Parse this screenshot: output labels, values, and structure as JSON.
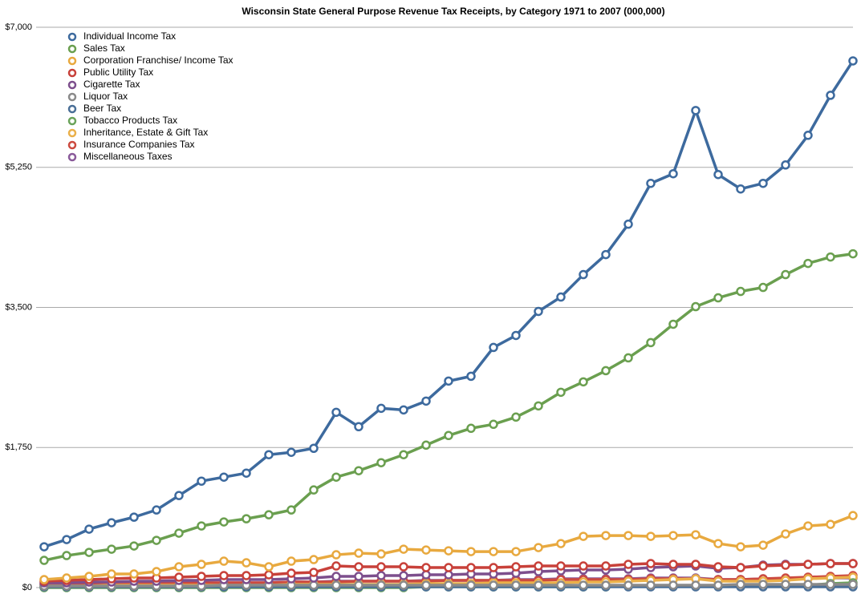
{
  "chart_data": {
    "type": "line",
    "title": "Wisconsin State General Purpose Revenue Tax Receipts, by Category 1971 to 2007 (000,000)",
    "categories": [
      null,
      null,
      null,
      null,
      null,
      null,
      null,
      null,
      null,
      null,
      null,
      null,
      null,
      null,
      null,
      null,
      null,
      null,
      null,
      null,
      null,
      null,
      null,
      null,
      null,
      null,
      null,
      null,
      null,
      null,
      null,
      null,
      null,
      null,
      null,
      null,
      null
    ],
    "ylim": [
      0,
      7000
    ],
    "yticks": [
      {
        "value": 0,
        "label": "$0"
      },
      {
        "value": 1750,
        "label": "$1,750"
      },
      {
        "value": 3500,
        "label": "$3,500"
      },
      {
        "value": 5250,
        "label": "$5,250"
      },
      {
        "value": 7000,
        "label": "$7,000"
      }
    ],
    "grid": true,
    "legend": "top-left",
    "series": [
      {
        "name": "Individual Income Tax",
        "color": "#3d6a9e",
        "values": [
          510,
          600,
          730,
          810,
          880,
          970,
          1150,
          1330,
          1380,
          1430,
          1660,
          1690,
          1740,
          2190,
          2010,
          2240,
          2220,
          2330,
          2580,
          2640,
          3000,
          3150,
          3450,
          3630,
          3910,
          4160,
          4540,
          5050,
          5170,
          5960,
          5160,
          4980,
          5050,
          5280,
          5650,
          6150,
          6580
        ]
      },
      {
        "name": "Sales Tax",
        "color": "#6a9f4f",
        "values": [
          340,
          400,
          440,
          480,
          520,
          590,
          680,
          770,
          820,
          860,
          910,
          970,
          1220,
          1380,
          1460,
          1560,
          1660,
          1780,
          1900,
          1990,
          2040,
          2130,
          2270,
          2440,
          2570,
          2710,
          2870,
          3060,
          3290,
          3510,
          3620,
          3700,
          3750,
          3910,
          4050,
          4130,
          4170
        ]
      },
      {
        "name": "Corporation Franchise/ Income Tax",
        "color": "#e8a93f",
        "values": [
          100,
          120,
          140,
          170,
          170,
          200,
          260,
          290,
          330,
          310,
          260,
          330,
          350,
          410,
          430,
          420,
          480,
          470,
          460,
          450,
          450,
          450,
          500,
          550,
          640,
          650,
          650,
          640,
          650,
          660,
          550,
          510,
          530,
          670,
          770,
          790,
          900
        ]
      },
      {
        "name": "Public Utility Tax",
        "color": "#c8413a",
        "values": [
          80,
          90,
          100,
          110,
          120,
          120,
          130,
          140,
          150,
          150,
          160,
          180,
          190,
          270,
          260,
          260,
          260,
          250,
          250,
          250,
          250,
          260,
          270,
          270,
          270,
          270,
          290,
          300,
          290,
          290,
          260,
          250,
          270,
          280,
          290,
          300,
          300
        ]
      },
      {
        "name": "Cigarette Tax",
        "color": "#7d4f8d",
        "values": [
          60,
          60,
          70,
          70,
          80,
          80,
          90,
          90,
          100,
          100,
          100,
          110,
          120,
          140,
          140,
          150,
          150,
          160,
          160,
          170,
          170,
          180,
          200,
          210,
          220,
          220,
          230,
          250,
          260,
          270,
          240,
          250,
          280,
          290,
          290,
          300,
          300
        ]
      },
      {
        "name": "Liquor Tax",
        "color": "#8a8a8a",
        "values": [
          20,
          20,
          20,
          20,
          20,
          20,
          20,
          20,
          30,
          30,
          30,
          30,
          30,
          30,
          30,
          30,
          30,
          30,
          30,
          30,
          30,
          30,
          30,
          30,
          30,
          30,
          30,
          30,
          30,
          30,
          30,
          40,
          40,
          40,
          40,
          40,
          40
        ]
      },
      {
        "name": "Beer Tax",
        "color": "#4a6f97",
        "values": [
          10,
          10,
          10,
          10,
          10,
          10,
          10,
          10,
          10,
          10,
          10,
          10,
          10,
          10,
          10,
          10,
          10,
          10,
          10,
          10,
          10,
          10,
          10,
          10,
          10,
          10,
          10,
          10,
          10,
          10,
          10,
          10,
          10,
          10,
          10,
          10,
          10
        ]
      },
      {
        "name": "Tobacco Products Tax",
        "color": "#6aa35a",
        "values": [
          0,
          0,
          0,
          0,
          0,
          0,
          0,
          0,
          0,
          0,
          0,
          0,
          0,
          0,
          0,
          0,
          0,
          10,
          10,
          10,
          10,
          10,
          10,
          10,
          10,
          10,
          20,
          20,
          20,
          20,
          20,
          20,
          20,
          30,
          30,
          50,
          60
        ]
      },
      {
        "name": "Inheritance, Estate & Gift Tax",
        "color": "#eab04a",
        "values": [
          20,
          20,
          20,
          30,
          30,
          30,
          30,
          30,
          30,
          30,
          30,
          40,
          40,
          40,
          40,
          40,
          40,
          50,
          50,
          50,
          60,
          60,
          60,
          60,
          70,
          70,
          80,
          90,
          100,
          110,
          80,
          80,
          80,
          90,
          110,
          120,
          130
        ]
      },
      {
        "name": "Insurance Companies Tax",
        "color": "#cc4a3f",
        "values": [
          40,
          40,
          40,
          50,
          50,
          50,
          50,
          60,
          60,
          60,
          60,
          70,
          70,
          70,
          80,
          80,
          80,
          80,
          90,
          90,
          90,
          90,
          90,
          100,
          100,
          100,
          100,
          110,
          110,
          110,
          100,
          100,
          110,
          120,
          130,
          140,
          150
        ]
      },
      {
        "name": "Miscellaneous Taxes",
        "color": "#8a5a9a",
        "values": [
          40,
          40,
          50,
          50,
          50,
          50,
          60,
          60,
          60,
          60,
          60,
          70,
          70,
          80,
          80,
          80,
          80,
          90,
          90,
          90,
          90,
          100,
          100,
          110,
          110,
          110,
          110,
          120,
          120,
          120,
          100,
          100,
          110,
          110,
          120,
          120,
          120
        ]
      }
    ]
  }
}
